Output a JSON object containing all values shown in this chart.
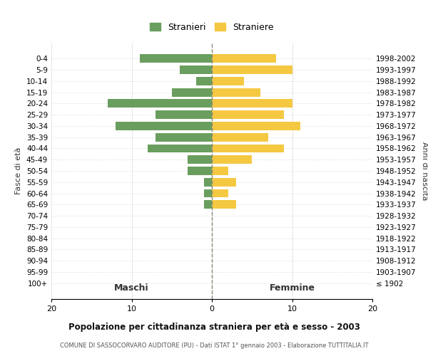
{
  "age_groups": [
    "0-4",
    "5-9",
    "10-14",
    "15-19",
    "20-24",
    "25-29",
    "30-34",
    "35-39",
    "40-44",
    "45-49",
    "50-54",
    "55-59",
    "60-64",
    "65-69",
    "70-74",
    "75-79",
    "80-84",
    "85-89",
    "90-94",
    "95-99",
    "100+"
  ],
  "birth_years": [
    "1998-2002",
    "1993-1997",
    "1988-1992",
    "1983-1987",
    "1978-1982",
    "1973-1977",
    "1968-1972",
    "1963-1967",
    "1958-1962",
    "1953-1957",
    "1948-1952",
    "1943-1947",
    "1938-1942",
    "1933-1937",
    "1928-1932",
    "1923-1927",
    "1918-1922",
    "1913-1917",
    "1908-1912",
    "1903-1907",
    "≤ 1902"
  ],
  "maschi": [
    9,
    4,
    2,
    5,
    13,
    7,
    12,
    7,
    8,
    3,
    3,
    1,
    1,
    1,
    0,
    0,
    0,
    0,
    0,
    0,
    0
  ],
  "femmine": [
    8,
    10,
    4,
    6,
    10,
    9,
    11,
    7,
    9,
    5,
    2,
    3,
    2,
    3,
    0,
    0,
    0,
    0,
    0,
    0,
    0
  ],
  "color_maschi": "#6a9e5e",
  "color_femmine": "#f5c842",
  "title": "Popolazione per cittadinanza straniera per età e sesso - 2003",
  "subtitle": "COMUNE DI SASSOCORVARO AUDITORE (PU) - Dati ISTAT 1° gennaio 2003 - Elaborazione TUTTITALIA.IT",
  "xlabel_left": "Maschi",
  "xlabel_right": "Femmine",
  "ylabel_left": "Fasce di età",
  "ylabel_right": "Anni di nascita",
  "legend_maschi": "Stranieri",
  "legend_femmine": "Straniere",
  "xlim": 20,
  "bg_color": "#ffffff",
  "grid_color": "#cccccc",
  "center_line_color": "#888877"
}
